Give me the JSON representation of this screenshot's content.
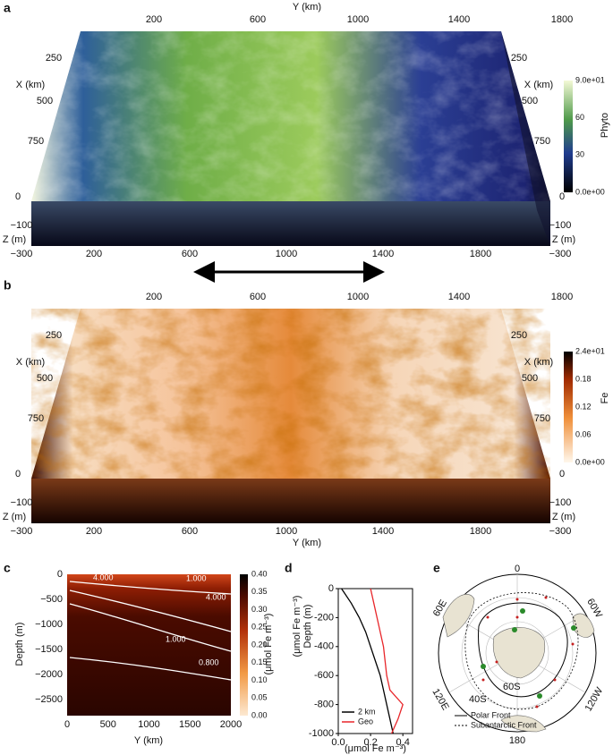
{
  "panels": {
    "a": {
      "label": "a",
      "y_title": "Y (km)",
      "top_ticks": [
        "200",
        "600",
        "1000",
        "1400",
        "1800"
      ],
      "bottom_ticks": [
        "200",
        "600",
        "1000",
        "1400",
        "1800"
      ],
      "left": {
        "x_title": "X (km)",
        "x_ticks": [
          "250",
          "500",
          "750",
          "0"
        ],
        "z_title": "Z (m)",
        "z_ticks": [
          "−100",
          "−300"
        ]
      },
      "right": {
        "x_title": "X (km)",
        "x_ticks": [
          "250",
          "500",
          "750",
          "0"
        ],
        "z_title": "Z (m)",
        "z_ticks": [
          "−100",
          "−300"
        ]
      },
      "colorbar": {
        "title": "Phyto",
        "ticks": [
          "9.0e+01",
          "60",
          "30",
          "0.0e+00"
        ]
      }
    },
    "b": {
      "label": "b",
      "y_title": "Y (km)",
      "top_ticks": [
        "200",
        "600",
        "1000",
        "1400",
        "1800"
      ],
      "bottom_ticks": [
        "200",
        "600",
        "1000",
        "1400",
        "1800"
      ],
      "left": {
        "x_title": "X (km)",
        "x_ticks": [
          "250",
          "500",
          "750",
          "0"
        ],
        "z_title": "Z (m)",
        "z_ticks": [
          "−100",
          "−300"
        ]
      },
      "right": {
        "x_title": "X (km)",
        "x_ticks": [
          "250",
          "500",
          "750",
          "0"
        ],
        "z_title": "Z (m)",
        "z_ticks": [
          "−100",
          "−300"
        ]
      },
      "colorbar": {
        "title": "Fe",
        "ticks": [
          "2.4e+01",
          "0.18",
          "0.12",
          "0.06",
          "0.0e+00"
        ]
      }
    },
    "c": {
      "label": "c",
      "ylabel": "Depth (m)",
      "xlabel": "Y (km)",
      "yticks": [
        "0",
        "−500",
        "−1000",
        "−1500",
        "−2000",
        "−2500"
      ],
      "xticks": [
        "0",
        "500",
        "1000",
        "1500",
        "2000"
      ],
      "contour_labels": [
        "4.000",
        "1.000",
        "4.000",
        "1.000",
        "0.800"
      ],
      "colorbar": {
        "title": "(μmol Fe m⁻³)",
        "ticks": [
          "0.40",
          "0.35",
          "0.30",
          "0.25",
          "0.20",
          "0.15",
          "0.10",
          "0.05",
          "0.00"
        ]
      }
    },
    "e": {
      "label": "e",
      "meridians": [
        "0",
        "60W",
        "120W",
        "180",
        "120E",
        "60E"
      ],
      "parallels": [
        "40S",
        "60S"
      ],
      "legend": [
        "Polar Front",
        "Subantarctic Front"
      ]
    }
  },
  "chart_data": {
    "type": "line",
    "label": "d",
    "ylabel": "Depth (m)",
    "ylabel_unit": "(μmol Fe m⁻³)",
    "xlabel": "(μmol Fe m⁻³)",
    "xlim": [
      0,
      0.46
    ],
    "ylim": [
      -1000,
      0
    ],
    "xticks": [
      {
        "value": 0,
        "label": "0.0"
      },
      0.2,
      0.4
    ],
    "yticks": [
      0,
      -200,
      -400,
      -600,
      -800,
      -1000
    ],
    "depth": [
      0,
      -100,
      -200,
      -300,
      -400,
      -500,
      -600,
      -700,
      -800,
      -900,
      -1000
    ],
    "series": [
      {
        "name": "2 km",
        "color": "#000000",
        "values": [
          0.02,
          0.08,
          0.13,
          0.17,
          0.2,
          0.23,
          0.26,
          0.28,
          0.3,
          0.32,
          0.34
        ]
      },
      {
        "name": "Geo",
        "color": "#e8262a",
        "values": [
          0.2,
          0.22,
          0.24,
          0.26,
          0.28,
          0.29,
          0.3,
          0.32,
          0.4,
          0.37,
          0.33
        ]
      }
    ],
    "legend": "lower left"
  }
}
